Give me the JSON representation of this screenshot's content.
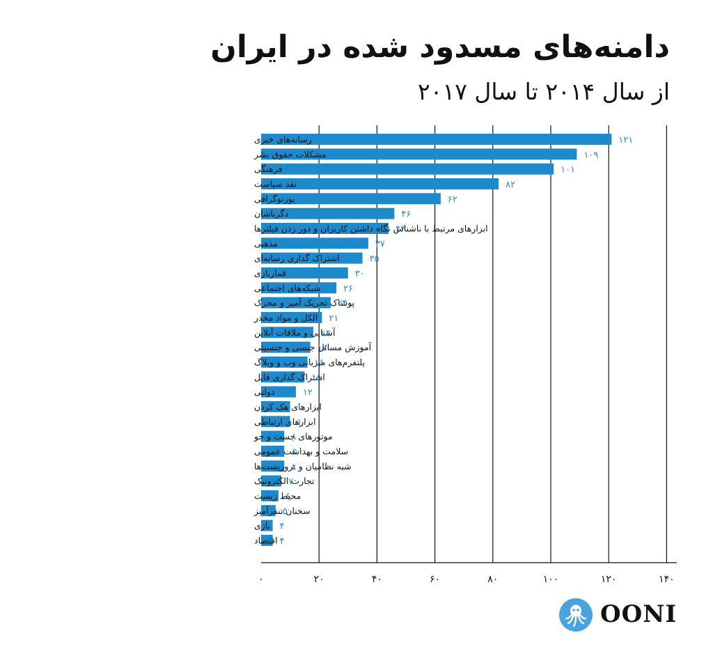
{
  "title": "دامنه‌های مسدود شده در ایران",
  "subtitle": "از سال ۲۰۱۴ تا سال ۲۰۱۷",
  "logo": {
    "text": "OONI",
    "icon": "octopus-icon",
    "icon_color": "#4aa3df"
  },
  "colors": {
    "bar": "#1f8acb",
    "value_label": "#2f86c8",
    "grid": "#111111"
  },
  "chart_data": {
    "type": "bar",
    "orientation": "horizontal",
    "categories": [
      "رسانه‌های خبری",
      "مشکلات حقوق بشر",
      "فرهنگی",
      "نقد سیاست",
      "پورنوگرافی",
      "دگرباشان",
      "ابزارهای مرتبط با ناشناس نگاه داشتن کاربران و دور زدن فیلترها",
      "مذهبی",
      "اشتراک گذاری رسانه‌ای",
      "قماربازی",
      "شبکه‌های اجتماعی",
      "پوشاک تحریک آمیز و محرک",
      "الکل و مواد مخدر",
      "آشنایی و ملاقات آنلاین",
      "آموزش مسائل جنسی و جنسیتی",
      "پلتفرم‌های میزبانی وب و وبلاگ",
      "اشتراک گذاری فایل",
      "دولتی",
      "ابزارهای هک کردن",
      "ابزارهای ارتباطی",
      "موتورهای جست و جو",
      "سلامت و بهداشت عمومی",
      "شبه نظامیان و تروریست‌ها",
      "تجارت الکترونیک",
      "محیط زیست",
      "سخنان تنفرآمیز",
      "بازی",
      "اقتصاد"
    ],
    "values": [
      121,
      109,
      101,
      82,
      62,
      46,
      44,
      37,
      35,
      30,
      26,
      24,
      21,
      18,
      17,
      16,
      15,
      12,
      10,
      10,
      8,
      8,
      8,
      7,
      6,
      5,
      4,
      4
    ],
    "value_labels": [
      "۱۲۱",
      "۱۰۹",
      "۱۰۱",
      "۸۲",
      "۶۲",
      "۴۶",
      "۴۴",
      "۳۷",
      "۳۵",
      "۳۰",
      "۲۶",
      "۲۴",
      "۲۱",
      "۱۸",
      "۱۷",
      "۱۶",
      "۱۵",
      "۱۲",
      "۱۰",
      "۱۰",
      "۸",
      "۸",
      "۸",
      "۷",
      "۶",
      "۵",
      "۴",
      "۴"
    ],
    "xlim": [
      0,
      140
    ],
    "xticks": [
      0,
      20,
      40,
      60,
      80,
      100,
      120,
      140
    ],
    "xtick_labels": [
      "۰",
      "۲۰",
      "۴۰",
      "۶۰",
      "۸۰",
      "۱۰۰",
      "۱۲۰",
      "۱۴۰"
    ],
    "grid": true,
    "legend": "none"
  }
}
